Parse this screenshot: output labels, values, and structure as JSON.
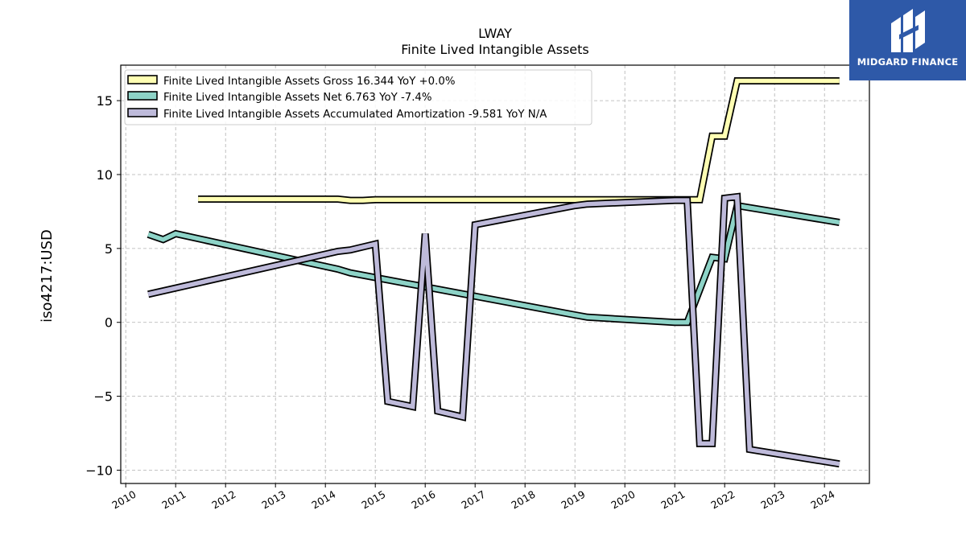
{
  "logo": {
    "name": "MIDGARD FINANCE",
    "icon": "midgard-logo-icon"
  },
  "chart_data": {
    "type": "line",
    "title": "LWAY",
    "subtitle": "Finite Lived Intangible Assets",
    "xlabel": "",
    "ylabel": "iso4217:USD",
    "xlim": [
      2009.9,
      2024.9
    ],
    "ylim": [
      -10.9,
      17.4
    ],
    "x_ticks": [
      2010,
      2011,
      2012,
      2013,
      2014,
      2015,
      2016,
      2017,
      2018,
      2019,
      2020,
      2021,
      2022,
      2023,
      2024
    ],
    "y_ticks": [
      -10,
      -5,
      0,
      5,
      10,
      15
    ],
    "y_tick_labels": [
      "−10",
      "−5",
      "0",
      "5",
      "10",
      "15"
    ],
    "grid": true,
    "legend_position": "top-left",
    "series": [
      {
        "name": "Finite Lived Intangible Assets Gross",
        "legend_label": "Finite Lived Intangible Assets Gross  16.344 YoY +0.0%",
        "color": "#ffffb3",
        "x": [
          2011.45,
          2014.25,
          2014.5,
          2014.75,
          2015.0,
          2021.45,
          2021.5,
          2021.75,
          2022.0,
          2022.25,
          2024.3
        ],
        "y": [
          8.34,
          8.34,
          8.25,
          8.25,
          8.3,
          8.3,
          8.3,
          12.6,
          12.6,
          16.34,
          16.34
        ]
      },
      {
        "name": "Finite Lived Intangible Assets Net",
        "legend_label": "Finite Lived Intangible Assets Net  6.763 YoY -7.4%",
        "color": "#8dd3c7",
        "x": [
          2010.45,
          2010.75,
          2011.0,
          2014.25,
          2014.5,
          2019.0,
          2019.25,
          2021.0,
          2021.25,
          2021.75,
          2022.0,
          2022.25,
          2024.3
        ],
        "y": [
          5.95,
          5.6,
          6.0,
          3.6,
          3.35,
          0.5,
          0.35,
          0.0,
          0.0,
          4.4,
          4.3,
          7.9,
          6.76
        ]
      },
      {
        "name": "Finite Lived Intangible Assets Accumulated Amortization",
        "legend_label": "Finite Lived Intangible Assets Accumulated Amortization  -9.581 YoY N/A",
        "color": "#bebada",
        "x": [
          2010.45,
          2014.25,
          2014.5,
          2015.0,
          2015.25,
          2015.75,
          2016.0,
          2016.25,
          2016.75,
          2017.0,
          2019.0,
          2019.25,
          2021.0,
          2021.25,
          2021.5,
          2021.75,
          2022.0,
          2022.25,
          2022.5,
          2024.3
        ],
        "y": [
          1.9,
          4.8,
          4.9,
          5.3,
          -5.35,
          -5.7,
          6.0,
          -6.0,
          -6.4,
          6.6,
          7.9,
          8.0,
          8.25,
          8.25,
          -8.2,
          -8.2,
          8.4,
          8.5,
          -8.6,
          -9.58
        ]
      }
    ]
  }
}
